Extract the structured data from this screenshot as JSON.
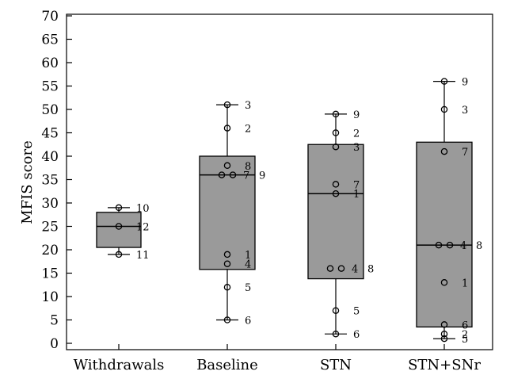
{
  "chart_data": {
    "type": "box",
    "ylabel": "MFIS score",
    "xlabel": "",
    "title": "",
    "ylim": [
      0,
      70
    ],
    "yticks": [
      0,
      5,
      10,
      15,
      20,
      25,
      30,
      35,
      40,
      45,
      50,
      55,
      60,
      65,
      70
    ],
    "categories": [
      "Withdrawals",
      "Baseline",
      "STN",
      "STN+SNr"
    ],
    "boxes": [
      {
        "category": "Withdrawals",
        "min": 19,
        "q1": 20.5,
        "median": 25,
        "q3": 28,
        "max": 29,
        "points": [
          {
            "value": 29,
            "label": "10"
          },
          {
            "value": 25,
            "label": "12"
          },
          {
            "value": 19,
            "label": "11"
          }
        ]
      },
      {
        "category": "Baseline",
        "min": 5,
        "q1": 15.8,
        "median": 36,
        "q3": 40,
        "max": 51,
        "points": [
          {
            "value": 51,
            "label": "3"
          },
          {
            "value": 46,
            "label": "2"
          },
          {
            "value": 38,
            "label": "8"
          },
          {
            "value": 36,
            "label": "7"
          },
          {
            "value": 36,
            "label": "9"
          },
          {
            "value": 19,
            "label": "1"
          },
          {
            "value": 17,
            "label": "4"
          },
          {
            "value": 12,
            "label": "5"
          },
          {
            "value": 5,
            "label": "6"
          }
        ]
      },
      {
        "category": "STN",
        "min": 2,
        "q1": 13.8,
        "median": 32,
        "q3": 42.5,
        "max": 49,
        "points": [
          {
            "value": 49,
            "label": "9"
          },
          {
            "value": 45,
            "label": "2"
          },
          {
            "value": 42,
            "label": "3"
          },
          {
            "value": 34,
            "label": "7"
          },
          {
            "value": 32,
            "label": "1"
          },
          {
            "value": 16,
            "label": "4"
          },
          {
            "value": 16,
            "label": "8"
          },
          {
            "value": 7,
            "label": "5"
          },
          {
            "value": 2,
            "label": "6"
          }
        ]
      },
      {
        "category": "STN+SNr",
        "min": 1,
        "q1": 3.5,
        "median": 21,
        "q3": 43,
        "max": 56,
        "points": [
          {
            "value": 56,
            "label": "9"
          },
          {
            "value": 50,
            "label": "3"
          },
          {
            "value": 41,
            "label": "7"
          },
          {
            "value": 21,
            "label": "4"
          },
          {
            "value": 21,
            "label": "8"
          },
          {
            "value": 13,
            "label": "1"
          },
          {
            "value": 4,
            "label": "6"
          },
          {
            "value": 2,
            "label": "2"
          },
          {
            "value": 1,
            "label": "5"
          }
        ]
      }
    ]
  }
}
